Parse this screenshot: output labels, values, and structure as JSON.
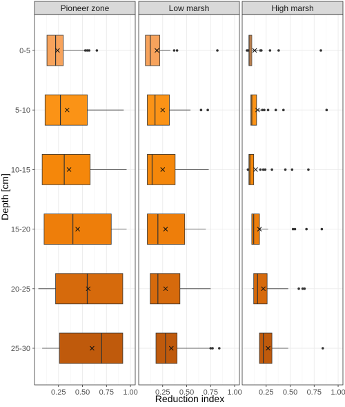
{
  "chart_data": {
    "type": "boxplot",
    "facets": [
      "Pioneer zone",
      "Low marsh",
      "High marsh"
    ],
    "depths": [
      "0-5",
      "5-10",
      "10-15",
      "15-20",
      "20-25",
      "25-30"
    ],
    "xlabel": "Reduction index",
    "ylabel": "Depth [cm]",
    "xlim": [
      0,
      1.05
    ],
    "xticks": [
      0.25,
      0.5,
      0.75,
      1.0
    ],
    "xtick_labels": [
      "0.25",
      "0.50",
      "0.75",
      "1.00"
    ],
    "depth_colors": [
      "#F7A35C",
      "#FB9316",
      "#F5870A",
      "#EE7E0A",
      "#D66A0C",
      "#BF5A0C"
    ],
    "panels": [
      {
        "facet": "Pioneer zone",
        "boxes": [
          {
            "depth": "0-5",
            "wmin": 0.13,
            "q1": 0.13,
            "median": 0.22,
            "q3": 0.3,
            "wmax": 0.52,
            "mean": 0.24,
            "outliers": [
              0.53,
              0.55,
              0.57,
              0.65
            ]
          },
          {
            "depth": "5-10",
            "wmin": 0.11,
            "q1": 0.11,
            "median": 0.27,
            "q3": 0.55,
            "wmax": 0.93,
            "mean": 0.34,
            "outliers": []
          },
          {
            "depth": "10-15",
            "wmin": 0.08,
            "q1": 0.08,
            "median": 0.31,
            "q3": 0.58,
            "wmax": 0.96,
            "mean": 0.36,
            "outliers": []
          },
          {
            "depth": "15-20",
            "wmin": 0.1,
            "q1": 0.1,
            "median": 0.4,
            "q3": 0.8,
            "wmax": 0.96,
            "mean": 0.45,
            "outliers": []
          },
          {
            "depth": "20-25",
            "wmin": 0.04,
            "q1": 0.22,
            "median": 0.55,
            "q3": 0.92,
            "wmax": 0.92,
            "mean": 0.56,
            "outliers": []
          },
          {
            "depth": "25-30",
            "wmin": 0.08,
            "q1": 0.26,
            "median": 0.7,
            "q3": 0.92,
            "wmax": 0.92,
            "mean": 0.6,
            "outliers": []
          }
        ]
      },
      {
        "facet": "Low marsh",
        "boxes": [
          {
            "depth": "0-5",
            "wmin": 0.07,
            "q1": 0.07,
            "median": 0.12,
            "q3": 0.22,
            "wmax": 0.33,
            "mean": 0.19,
            "outliers": [
              0.37,
              0.4,
              0.82
            ]
          },
          {
            "depth": "5-10",
            "wmin": 0.09,
            "q1": 0.09,
            "median": 0.17,
            "q3": 0.32,
            "wmax": 0.54,
            "mean": 0.25,
            "outliers": [
              0.65,
              0.72
            ]
          },
          {
            "depth": "10-15",
            "wmin": 0.09,
            "q1": 0.09,
            "median": 0.14,
            "q3": 0.38,
            "wmax": 0.73,
            "mean": 0.25,
            "outliers": []
          },
          {
            "depth": "15-20",
            "wmin": 0.09,
            "q1": 0.09,
            "median": 0.2,
            "q3": 0.48,
            "wmax": 0.7,
            "mean": 0.28,
            "outliers": []
          },
          {
            "depth": "20-25",
            "wmin": 0.12,
            "q1": 0.12,
            "median": 0.2,
            "q3": 0.43,
            "wmax": 0.75,
            "mean": 0.28,
            "outliers": []
          },
          {
            "depth": "25-30",
            "wmin": 0.18,
            "q1": 0.18,
            "median": 0.28,
            "q3": 0.4,
            "wmax": 0.74,
            "mean": 0.34,
            "outliers": [
              0.75,
              0.77,
              0.84
            ]
          }
        ]
      },
      {
        "facet": "High marsh",
        "boxes": [
          {
            "depth": "0-5",
            "wmin": 0.05,
            "q1": 0.07,
            "median": 0.08,
            "q3": 0.1,
            "wmax": 0.17,
            "mean": 0.13,
            "outliers": [
              0.05,
              0.06,
              0.19,
              0.2,
              0.29,
              0.38,
              0.82
            ]
          },
          {
            "depth": "5-10",
            "wmin": 0.09,
            "q1": 0.09,
            "median": 0.1,
            "q3": 0.15,
            "wmax": 0.2,
            "mean": 0.16,
            "outliers": [
              0.21,
              0.23,
              0.27,
              0.35,
              0.43,
              0.88
            ]
          },
          {
            "depth": "10-15",
            "wmin": 0.07,
            "q1": 0.07,
            "median": 0.08,
            "q3": 0.12,
            "wmax": 0.12,
            "mean": 0.14,
            "outliers": [
              0.06,
              0.19,
              0.22,
              0.24,
              0.31,
              0.45,
              0.52,
              0.69
            ]
          },
          {
            "depth": "15-20",
            "wmin": 0.1,
            "q1": 0.1,
            "median": 0.12,
            "q3": 0.18,
            "wmax": 0.27,
            "mean": 0.18,
            "outliers": [
              0.53,
              0.55,
              0.67,
              0.83
            ]
          },
          {
            "depth": "20-25",
            "wmin": 0.1,
            "q1": 0.12,
            "median": 0.16,
            "q3": 0.26,
            "wmax": 0.48,
            "mean": 0.22,
            "outliers": [
              0.59,
              0.63,
              0.65
            ]
          },
          {
            "depth": "25-30",
            "wmin": 0.18,
            "q1": 0.18,
            "median": 0.22,
            "q3": 0.31,
            "wmax": 0.48,
            "mean": 0.27,
            "outliers": [
              0.84
            ]
          }
        ]
      }
    ]
  }
}
